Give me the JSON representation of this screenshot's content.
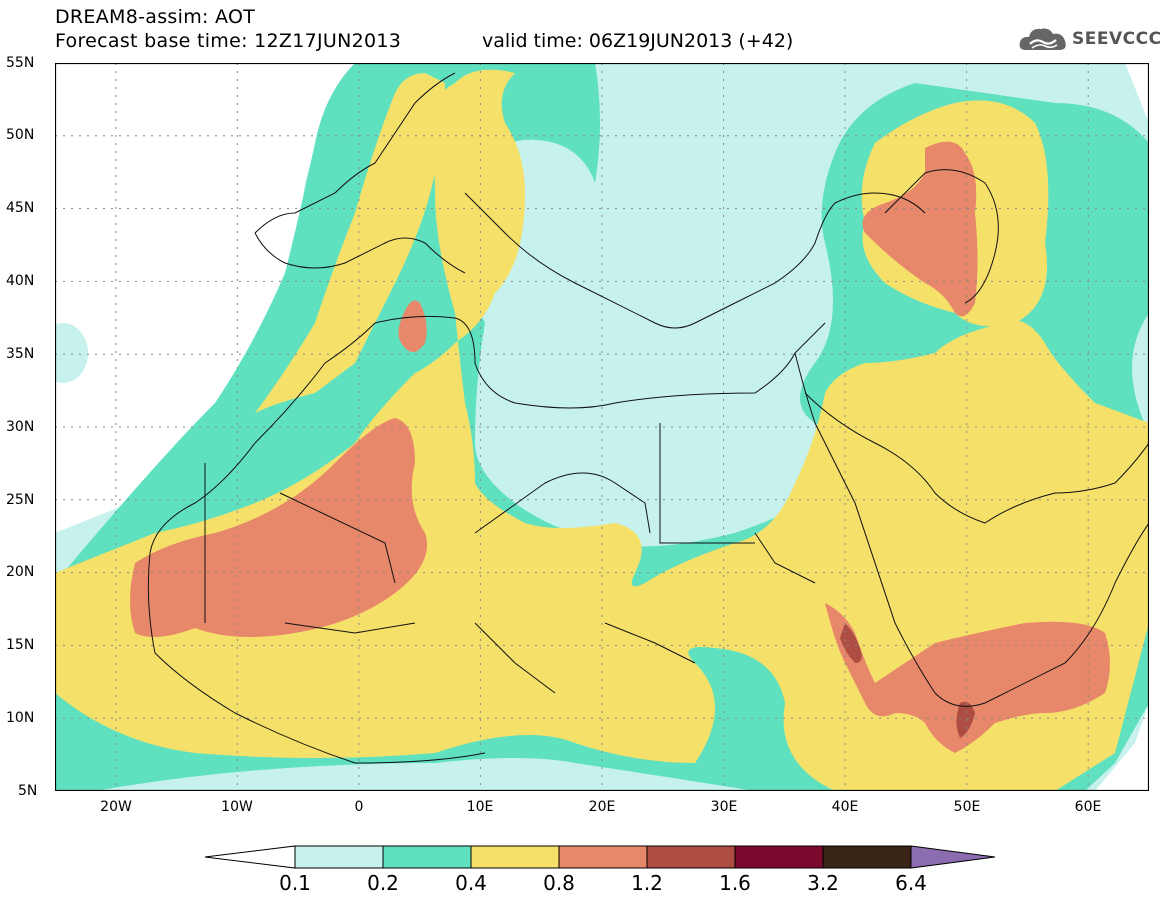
{
  "header": {
    "title_line1": "DREAM8-assim: AOT",
    "title_line2": "Forecast base time: 12Z17JUN2013",
    "valid_time": "valid time: 06Z19JUN2013 (+42)"
  },
  "logo": {
    "text": "SEEVCCC",
    "icon": "cloud-logo-icon"
  },
  "map": {
    "lat_labels": [
      "55N",
      "50N",
      "45N",
      "40N",
      "35N",
      "30N",
      "25N",
      "20N",
      "15N",
      "10N",
      "5N"
    ],
    "lon_labels": [
      "20W",
      "10W",
      "0",
      "10E",
      "20E",
      "30E",
      "40E",
      "50E",
      "60E"
    ],
    "lat_range": [
      5,
      55
    ],
    "lon_range": [
      -25,
      65
    ],
    "grid": "dotted"
  },
  "legend": {
    "labels": [
      "0.1",
      "0.2",
      "0.4",
      "0.8",
      "1.2",
      "1.6",
      "3.2",
      "6.4"
    ],
    "colors": [
      "#c6f1ec",
      "#5fe0bf",
      "#f5e06a",
      "#e8886a",
      "#ae4d42",
      "#7d0a2e",
      "#3a2415",
      "#8b6cb0"
    ]
  }
}
